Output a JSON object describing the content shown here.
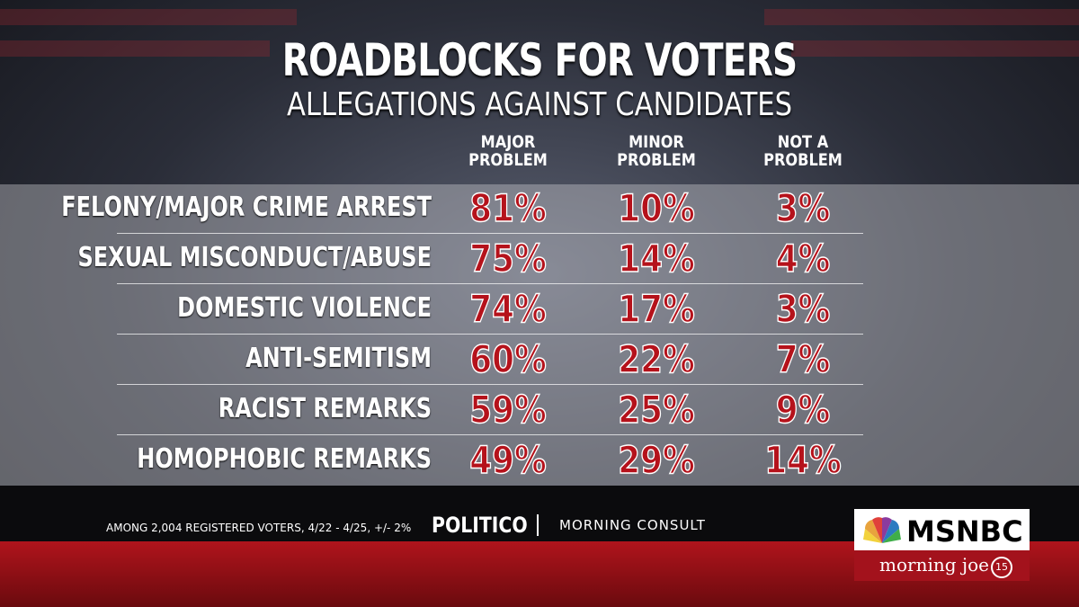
{
  "header": {
    "title": "ROADBLOCKS FOR VOTERS",
    "subtitle": "ALLEGATIONS AGAINST CANDIDATES"
  },
  "table": {
    "columns": [
      "MAJOR PROBLEM",
      "MINOR PROBLEM",
      "NOT A PROBLEM"
    ],
    "rows": [
      [
        "FELONY/MAJOR CRIME ARREST",
        "81%",
        "10%",
        "3%"
      ],
      [
        "SEXUAL MISCONDUCT/ABUSE",
        "75%",
        "14%",
        "4%"
      ],
      [
        "DOMESTIC VIOLENCE",
        "74%",
        "17%",
        "3%"
      ],
      [
        "ANTI-SEMITISM",
        "60%",
        "22%",
        "7%"
      ],
      [
        "RACIST REMARKS",
        "59%",
        "25%",
        "9%"
      ],
      [
        "HOMOPHOBIC REMARKS",
        "49%",
        "29%",
        "14%"
      ]
    ]
  },
  "footer": {
    "note": "AMONG 2,004 REGISTERED VOTERS, 4/22 - 4/25,  +/- 2%",
    "source_1": "POLITICO",
    "source_2": "MORNING CONSULT"
  },
  "logo": {
    "network": "MSNBC",
    "show": "morning joe",
    "badge": "15"
  }
}
